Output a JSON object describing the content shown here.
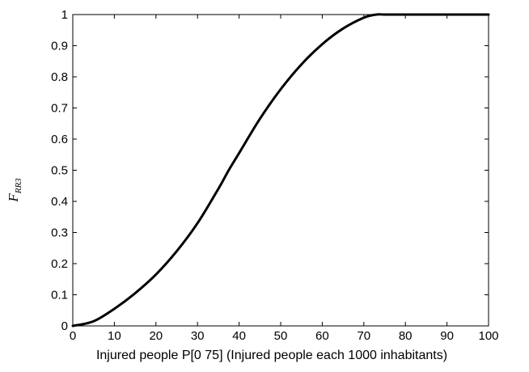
{
  "chart_data": {
    "type": "line",
    "title": "",
    "xlabel": "Injured people  P[0 75] (Injured people each 1000 inhabitants)",
    "ylabel": "F",
    "ylabel_subscript": "RR3",
    "xlim": [
      0,
      100
    ],
    "ylim": [
      0,
      1
    ],
    "x_ticks": [
      "0",
      "10",
      "20",
      "30",
      "40",
      "50",
      "60",
      "70",
      "80",
      "90",
      "100"
    ],
    "y_ticks": [
      "0",
      "0.1",
      "0.2",
      "0.3",
      "0.4",
      "0.5",
      "0.6",
      "0.7",
      "0.8",
      "0.9",
      "1"
    ],
    "grid": false,
    "legend": "none",
    "line_color": "#000000",
    "series": [
      {
        "x": [
          0,
          5,
          10,
          15,
          20,
          25,
          30,
          35,
          37.5,
          40,
          45,
          50,
          55,
          60,
          65,
          70,
          73,
          75,
          80,
          85,
          90,
          95,
          100
        ],
        "values": [
          0,
          0.015,
          0.055,
          0.105,
          0.165,
          0.24,
          0.33,
          0.44,
          0.5,
          0.555,
          0.665,
          0.76,
          0.84,
          0.905,
          0.955,
          0.99,
          1,
          1,
          1,
          1,
          1,
          1,
          1
        ]
      }
    ]
  }
}
